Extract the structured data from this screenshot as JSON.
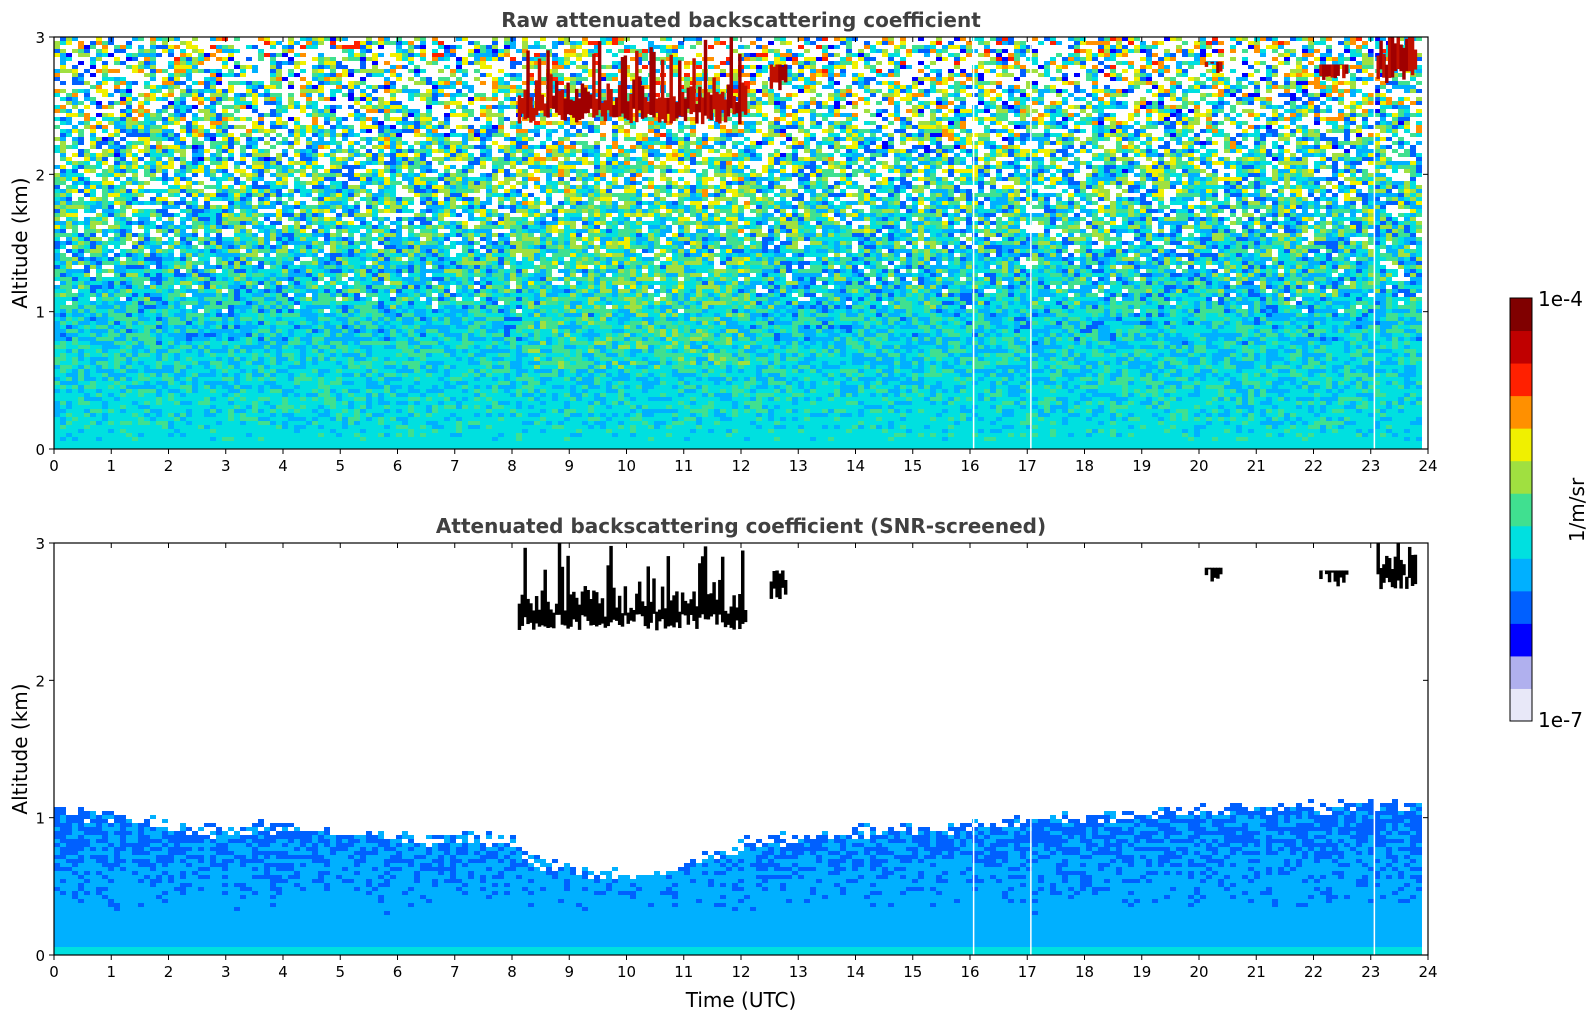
{
  "chart_data": [
    {
      "type": "heatmap",
      "title": "Raw attenuated backscattering coefficient",
      "xlabel": "",
      "ylabel": "Altitude (km)",
      "xlim": [
        0,
        24
      ],
      "ylim": [
        0,
        3
      ],
      "x_ticks": [
        "0",
        "1",
        "2",
        "3",
        "4",
        "5",
        "6",
        "7",
        "8",
        "9",
        "10",
        "11",
        "12",
        "13",
        "14",
        "15",
        "16",
        "17",
        "18",
        "19",
        "20",
        "21",
        "22",
        "23",
        "24"
      ],
      "y_ticks": [
        "0",
        "1",
        "2",
        "3"
      ],
      "data_end_time": 23.8,
      "data_gaps_time": [
        16.05,
        17.05,
        23.05
      ],
      "noise_scattered": true,
      "cloud_layers": [
        {
          "start": 8.1,
          "end": 12.1,
          "base_km": 2.4,
          "top_km": 3.0
        },
        {
          "start": 12.5,
          "end": 12.8,
          "base_km": 2.6,
          "top_km": 2.8
        },
        {
          "start": 20.1,
          "end": 20.4,
          "base_km": 2.75,
          "top_km": 2.82
        },
        {
          "start": 22.1,
          "end": 22.6,
          "base_km": 2.72,
          "top_km": 2.8
        },
        {
          "start": 23.1,
          "end": 23.8,
          "base_km": 2.7,
          "top_km": 3.0
        }
      ]
    },
    {
      "type": "heatmap",
      "title": "Attenuated backscattering coefficient (SNR-screened)",
      "xlabel": "Time (UTC)",
      "ylabel": "Altitude (km)",
      "xlim": [
        0,
        24
      ],
      "ylim": [
        0,
        3
      ],
      "x_ticks": [
        "0",
        "1",
        "2",
        "3",
        "4",
        "5",
        "6",
        "7",
        "8",
        "9",
        "10",
        "11",
        "12",
        "13",
        "14",
        "15",
        "16",
        "17",
        "18",
        "19",
        "20",
        "21",
        "22",
        "23",
        "24"
      ],
      "y_ticks": [
        "0",
        "1",
        "2",
        "3"
      ],
      "data_end_time": 23.8,
      "data_gaps_time": [
        16.05,
        17.05,
        23.05
      ],
      "noise_scattered": false,
      "boundary_layer_top_km": [
        [
          0,
          1.08
        ],
        [
          1,
          1.02
        ],
        [
          2,
          0.95
        ],
        [
          3,
          0.92
        ],
        [
          4,
          0.96
        ],
        [
          5,
          0.92
        ],
        [
          6,
          0.86
        ],
        [
          7,
          0.86
        ],
        [
          8,
          0.85
        ],
        [
          8.2,
          0.72
        ],
        [
          9,
          0.62
        ],
        [
          10,
          0.6
        ],
        [
          10.5,
          0.6
        ],
        [
          11,
          0.7
        ],
        [
          12,
          0.82
        ],
        [
          13,
          0.86
        ],
        [
          14,
          0.92
        ],
        [
          15,
          0.95
        ],
        [
          16,
          0.96
        ],
        [
          17,
          1.0
        ],
        [
          18,
          1.02
        ],
        [
          19,
          1.05
        ],
        [
          20,
          1.07
        ],
        [
          21,
          1.08
        ],
        [
          22,
          1.08
        ],
        [
          23,
          1.1
        ],
        [
          23.8,
          1.12
        ]
      ],
      "cloud_layers": [
        {
          "start": 8.1,
          "end": 12.1,
          "base_km": 2.4,
          "top_km": 3.0
        },
        {
          "start": 12.5,
          "end": 12.8,
          "base_km": 2.6,
          "top_km": 2.8
        },
        {
          "start": 20.1,
          "end": 20.4,
          "base_km": 2.75,
          "top_km": 2.82
        },
        {
          "start": 22.1,
          "end": 22.6,
          "base_km": 2.72,
          "top_km": 2.8
        },
        {
          "start": 23.1,
          "end": 23.8,
          "base_km": 2.7,
          "top_km": 3.0
        }
      ]
    }
  ],
  "colorbar": {
    "label": "1/m/sr",
    "max_label": "1e-4",
    "min_label": "1e-7",
    "scale": "log",
    "range": [
      1e-07,
      0.0001
    ],
    "colormap": [
      "#e8e8f8",
      "#b0b0ee",
      "#0000ff",
      "#0060ff",
      "#00b0ff",
      "#00e0e0",
      "#40e090",
      "#a0e040",
      "#f0f000",
      "#ff9000",
      "#ff2000",
      "#c00000",
      "#800000"
    ]
  }
}
